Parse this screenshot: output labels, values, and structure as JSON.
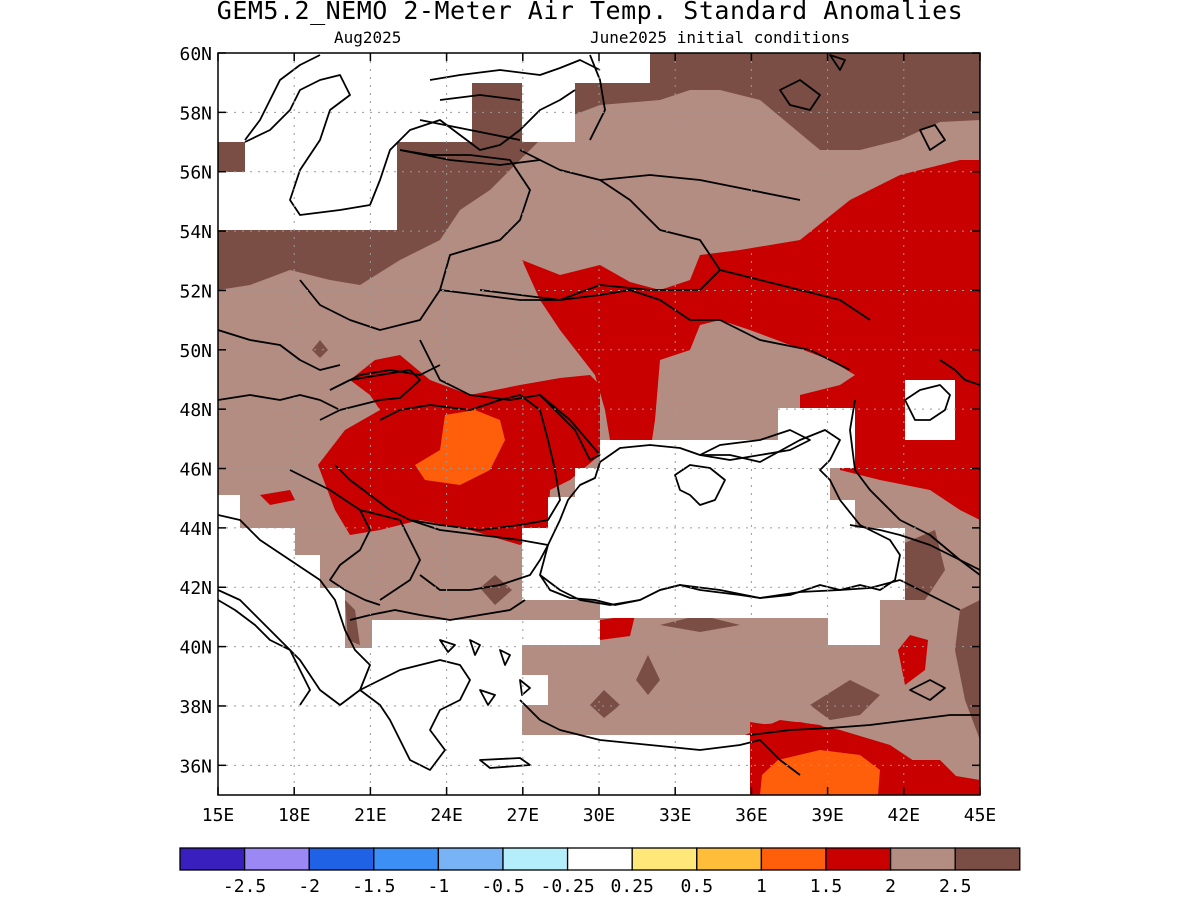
{
  "title": "GEM5.2_NEMO 2-Meter Air Temp. Standard Anomalies",
  "subtitle_left": "Aug2025",
  "subtitle_right": "June2025 initial conditions",
  "map": {
    "lon_range": [
      15,
      45
    ],
    "lat_range": [
      35,
      60
    ],
    "x_ticks": [
      "15E",
      "18E",
      "21E",
      "24E",
      "27E",
      "30E",
      "33E",
      "36E",
      "39E",
      "42E",
      "45E"
    ],
    "y_ticks": [
      "36N",
      "38N",
      "40N",
      "42N",
      "44N",
      "46N",
      "48N",
      "50N",
      "52N",
      "54N",
      "56N",
      "58N",
      "60N"
    ],
    "grid": "dotted"
  },
  "legend": {
    "colors": [
      "#3a1fbf",
      "#9b88f5",
      "#1f62e6",
      "#3c8ff5",
      "#78b4f5",
      "#b4eefa",
      "#ffffff",
      "#ffe77a",
      "#ffbe3a",
      "#ff5f0a",
      "#c80000",
      "#b38c82",
      "#7a4e45"
    ],
    "labels": [
      "-2.5",
      "-2",
      "-1.5",
      "-1",
      "-0.5",
      "-0.25",
      "0.25",
      "0.5",
      "1",
      "1.5",
      "2",
      "2.5"
    ]
  },
  "regions": [
    {
      "name": "2-2.5 anomaly",
      "color": "#b38c82"
    },
    {
      "name": "above 2.5 anomaly",
      "color": "#7a4e45"
    },
    {
      "name": "1.5-2 anomaly",
      "color": "#c80000"
    },
    {
      "name": "1-1.5 anomaly",
      "color": "#ff5f0a"
    }
  ]
}
